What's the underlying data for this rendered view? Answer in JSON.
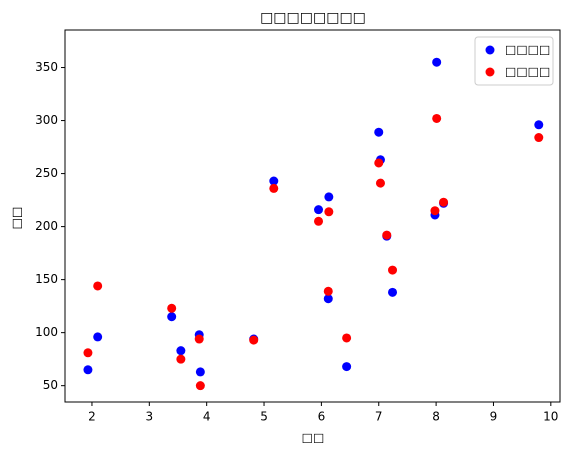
{
  "chart_data": {
    "type": "scatter",
    "title": "□□□□□□□□",
    "x_label": "□□",
    "y_label": "□□",
    "x": [
      1.93,
      2.1,
      3.39,
      3.55,
      3.87,
      3.89,
      4.82,
      5.17,
      5.95,
      6.13,
      6.12,
      6.44,
      7.0,
      7.03,
      7.14,
      7.24,
      8.01,
      7.98,
      8.13,
      9.79
    ],
    "series": [
      {
        "name": "□□□□",
        "color": "#0000ff",
        "values": [
          65,
          96,
          115,
          83,
          98,
          63,
          94,
          243,
          216,
          228,
          132,
          68,
          289,
          263,
          191,
          138,
          355,
          211,
          222,
          296
        ]
      },
      {
        "name": "□□□□",
        "color": "#ff0000",
        "values": [
          81,
          144,
          123,
          75,
          94,
          50,
          93,
          236,
          205,
          214,
          139,
          95,
          260,
          241,
          192,
          159,
          302,
          215,
          223,
          284
        ]
      }
    ],
    "xlim": [
      1.53,
      10.16
    ],
    "ylim": [
      34.6,
      385.4
    ],
    "xticks": [
      2,
      3,
      4,
      5,
      6,
      7,
      8,
      9,
      10
    ],
    "yticks": [
      50,
      100,
      150,
      200,
      250,
      300,
      350
    ],
    "grid": false,
    "legend": "upper right"
  }
}
